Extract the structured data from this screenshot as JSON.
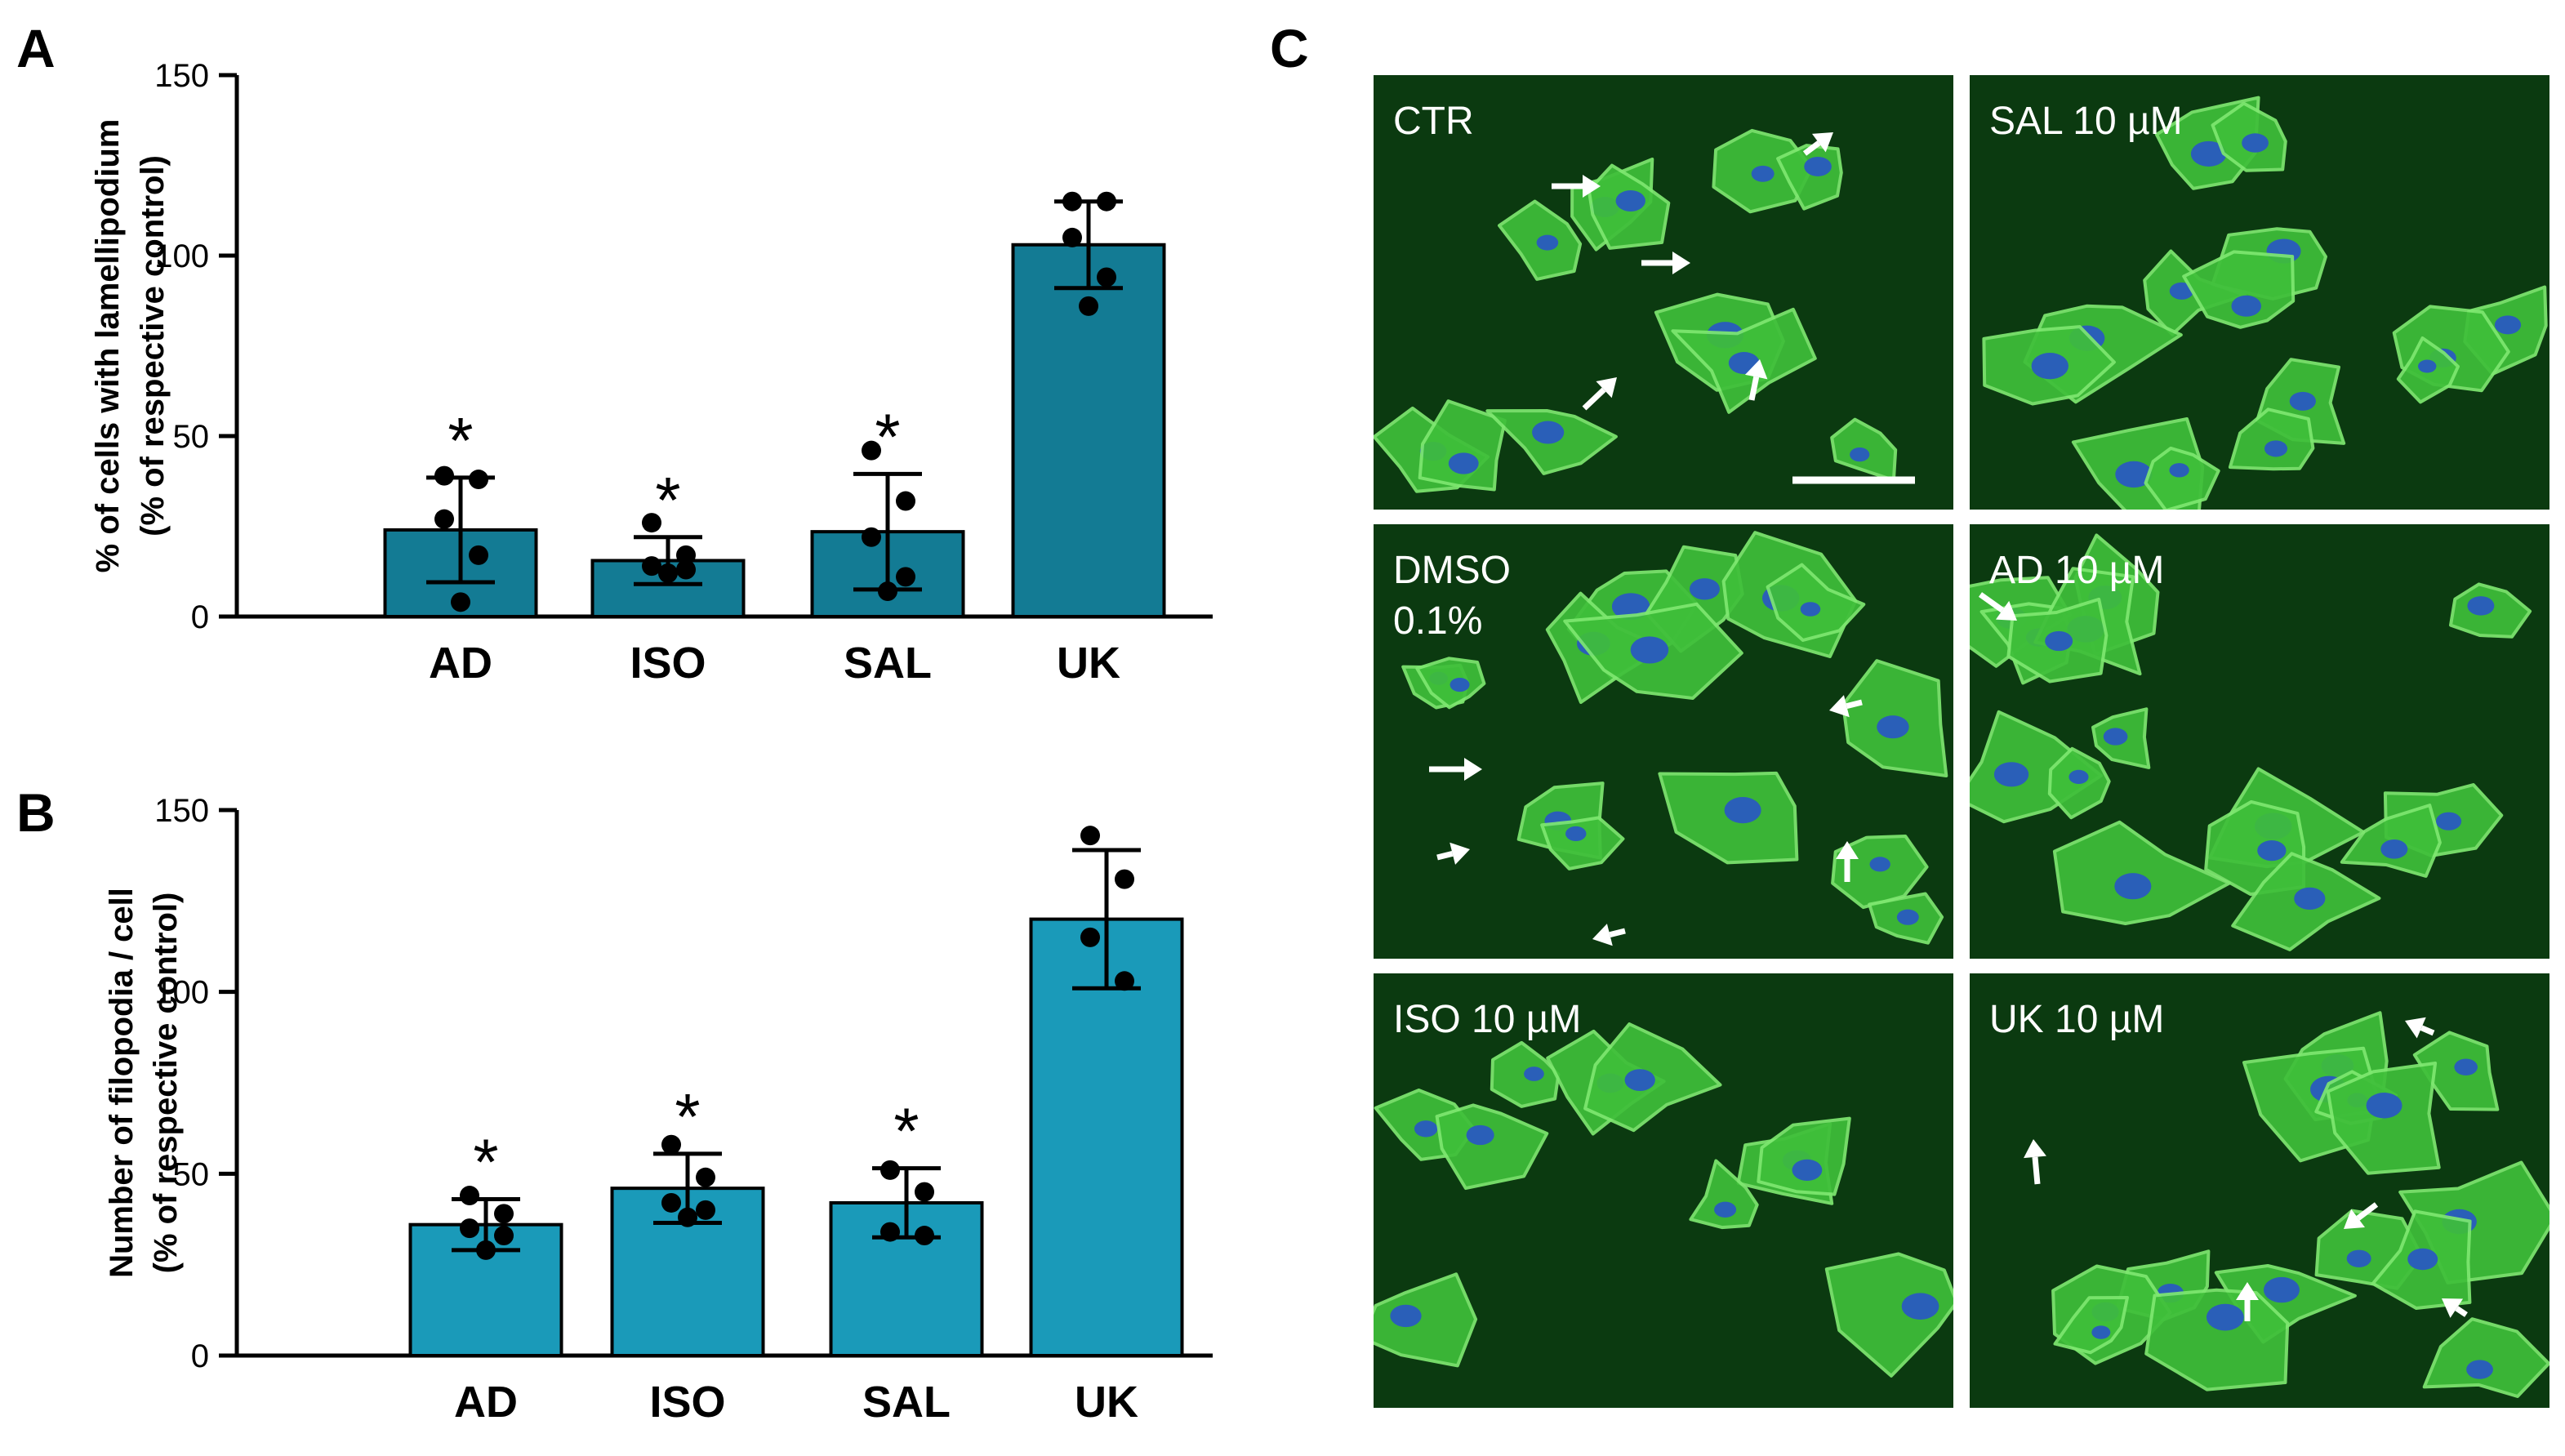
{
  "panel_letters": {
    "a": "A",
    "b": "B",
    "c": "C"
  },
  "significance_marker": "*",
  "chart_data": [
    {
      "type": "bar",
      "panel": "A",
      "title": "",
      "ylabel_line1": "% of cells with lamellipodium",
      "ylabel_line2": "(% of respective control)",
      "categories": [
        "AD",
        "ISO",
        "SAL",
        "UK"
      ],
      "values": [
        24,
        15.5,
        23.5,
        103
      ],
      "errors": [
        14.5,
        6.5,
        16,
        12
      ],
      "significant": [
        true,
        true,
        true,
        false
      ],
      "points": [
        [
          39,
          38,
          27,
          17,
          4
        ],
        [
          26,
          17,
          14,
          13,
          12
        ],
        [
          46,
          32,
          22,
          11,
          7
        ],
        [
          115,
          115,
          105,
          94,
          86
        ]
      ],
      "ylim": [
        0,
        150
      ],
      "yticks": [
        "0",
        "50",
        "100",
        "150"
      ],
      "bar_color": "#137b94"
    },
    {
      "type": "bar",
      "panel": "B",
      "title": "",
      "ylabel_line1": "Number of filopodia / cell",
      "ylabel_line2": "(% of respective control)",
      "categories": [
        "AD",
        "ISO",
        "SAL",
        "UK"
      ],
      "values": [
        36,
        46,
        42,
        120
      ],
      "errors": [
        7,
        9.5,
        9.5,
        19
      ],
      "significant": [
        true,
        true,
        true,
        false
      ],
      "points": [
        [
          44,
          39,
          35,
          33,
          29
        ],
        [
          58,
          49,
          42,
          40,
          38
        ],
        [
          51,
          45,
          34,
          33
        ],
        [
          143,
          131,
          115,
          103
        ]
      ],
      "ylim": [
        0,
        150
      ],
      "yticks": [
        "0",
        "50",
        "100",
        "150"
      ],
      "bar_color": "#1a9ab9"
    }
  ],
  "micrographs": {
    "colors": {
      "background": "#0b3a10",
      "cell": "#3fbf3a",
      "cell_edge": "#7ee870",
      "nucleus": "#2a5fb8",
      "divider": "#ffffff"
    },
    "scale_bar": true,
    "panels": [
      {
        "id": "ctr",
        "label_lines": [
          "CTR"
        ]
      },
      {
        "id": "sal",
        "label_lines": [
          "SAL 10 µM"
        ]
      },
      {
        "id": "dmso",
        "label_lines": [
          "DMSO",
          "0.1%"
        ]
      },
      {
        "id": "ad",
        "label_lines": [
          "AD 10 µM"
        ]
      },
      {
        "id": "iso",
        "label_lines": [
          "ISO 10 µM"
        ]
      },
      {
        "id": "uk",
        "label_lines": [
          "UK 10 µM"
        ]
      }
    ]
  }
}
